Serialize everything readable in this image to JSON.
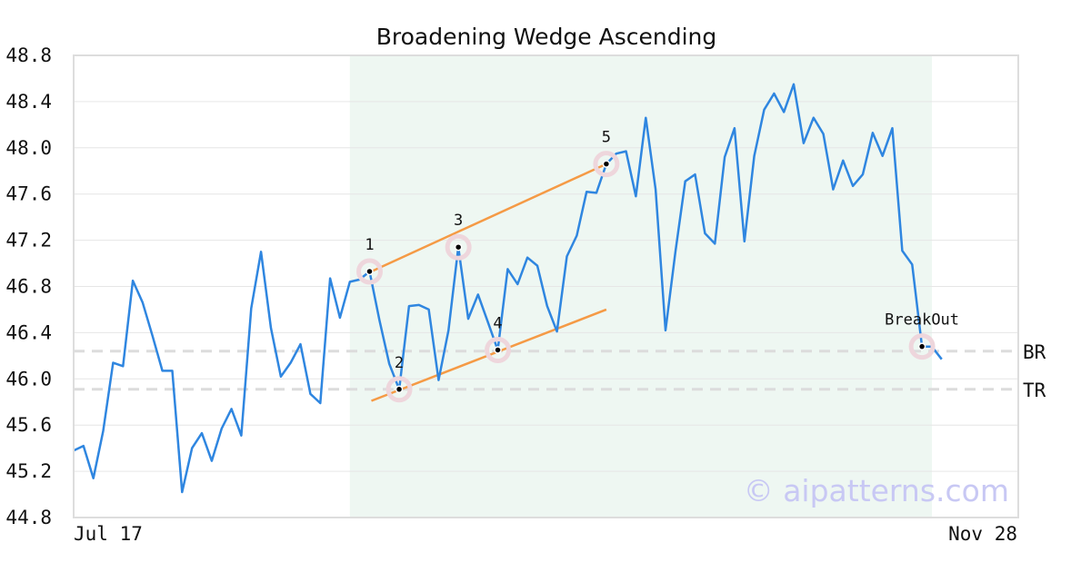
{
  "chart_data": {
    "type": "line",
    "title": "Broadening Wedge Ascending",
    "ylim": [
      44.8,
      48.8
    ],
    "yticks": [
      "44.8",
      "45.2",
      "45.6",
      "46.0",
      "46.4",
      "46.8",
      "47.2",
      "47.6",
      "48.0",
      "48.4",
      "48.8"
    ],
    "xtick_labels": {
      "start": "Jul 17",
      "end": "Nov 28"
    },
    "grid": true,
    "series": [
      {
        "color": "#2f86e0",
        "values": [
          45.38,
          45.42,
          45.14,
          45.55,
          46.14,
          46.11,
          46.85,
          46.66,
          46.37,
          46.07,
          46.07,
          45.02,
          45.4,
          45.53,
          45.29,
          45.57,
          45.74,
          45.51,
          46.61,
          47.1,
          46.44,
          46.02,
          46.14,
          46.3,
          45.87,
          45.79,
          46.87,
          46.53,
          46.84,
          46.86,
          46.93,
          46.51,
          46.13,
          45.91,
          46.63,
          46.64,
          46.6,
          45.99,
          46.42,
          47.14,
          46.52,
          46.73,
          46.49,
          46.25,
          46.95,
          46.82,
          47.05,
          46.98,
          46.63,
          46.41,
          47.06,
          47.24,
          47.62,
          47.61,
          47.86,
          47.95,
          47.97,
          47.58,
          48.26,
          47.64,
          46.42,
          47.1,
          47.71,
          47.77,
          47.26,
          47.17,
          47.92,
          48.17,
          47.19,
          47.93,
          48.33,
          48.47,
          48.31,
          48.55,
          48.04,
          48.26,
          48.12,
          47.64,
          47.89,
          47.67,
          47.77,
          48.13,
          47.93,
          48.17,
          47.11,
          46.99,
          46.28,
          46.28,
          46.17
        ]
      }
    ],
    "highlight_region": {
      "start_index": 28,
      "end_index": 87,
      "color": "#eef7f2"
    },
    "points": [
      {
        "label": "1",
        "index": 30,
        "value": 46.93
      },
      {
        "label": "2",
        "index": 33,
        "value": 45.91
      },
      {
        "label": "3",
        "index": 39,
        "value": 47.14
      },
      {
        "label": "4",
        "index": 43,
        "value": 46.25
      },
      {
        "label": "5",
        "index": 54,
        "value": 47.86
      },
      {
        "label": "BreakOut",
        "index": 86,
        "value": 46.28
      }
    ],
    "trendlines": [
      {
        "color": "#f59a45",
        "from": {
          "index": 30,
          "value": 46.93
        },
        "to": {
          "index": 54,
          "value": 47.86
        }
      },
      {
        "color": "#f59a45",
        "from": {
          "index": 30,
          "value": 45.81
        },
        "to": {
          "index": 54,
          "value": 46.6
        }
      }
    ],
    "reference_lines": [
      {
        "label": "BR",
        "value": 46.24
      },
      {
        "label": "TR",
        "value": 45.91
      }
    ],
    "watermark": "© aipatterns.com"
  }
}
